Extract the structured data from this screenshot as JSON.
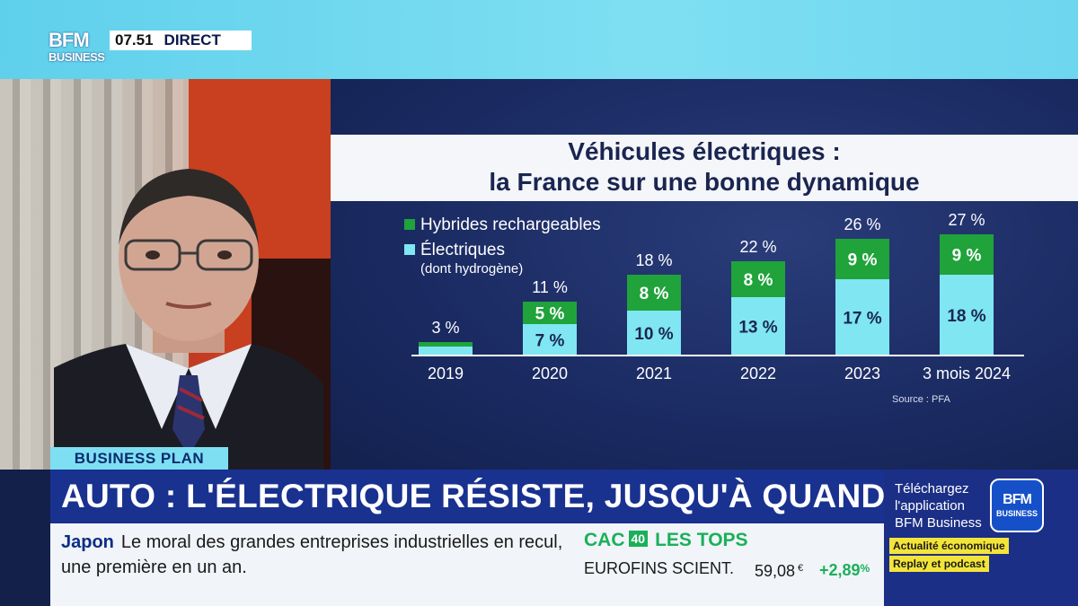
{
  "header": {
    "logo_line1": "BFM",
    "logo_line2": "BUSINESS",
    "clock": "07.51",
    "live_label": "DIRECT"
  },
  "chart_title": {
    "line1": "Véhicules électriques :",
    "line2": "la France sur une bonne dynamique"
  },
  "chart_data": {
    "type": "bar",
    "stacked": true,
    "categories": [
      "2019",
      "2020",
      "2021",
      "2022",
      "2023",
      "3 mois 2024"
    ],
    "series": [
      {
        "name": "Électriques",
        "sub": "(dont hydrogène)",
        "color": "#7fe6f2",
        "values": [
          2,
          7,
          10,
          13,
          17,
          18
        ],
        "labels": [
          "",
          "7 %",
          "10 %",
          "13 %",
          "17 %",
          "18 %"
        ]
      },
      {
        "name": "Hybrides rechargeables",
        "color": "#1fa33a",
        "values": [
          1,
          5,
          8,
          8,
          9,
          9
        ],
        "labels": [
          "",
          "5 %",
          "8 %",
          "8 %",
          "9 %",
          "9 %"
        ]
      }
    ],
    "totals": [
      "3 %",
      "11 %",
      "18 %",
      "22 %",
      "26 %",
      "27 %"
    ],
    "source": "Source : PFA",
    "ylim": [
      0,
      28
    ],
    "legend": "top-left"
  },
  "lower_third": {
    "tag": "BUSINESS PLAN",
    "headline": "AUTO : L'ÉLECTRIQUE RÉSISTE, JUSQU'À QUAND ?"
  },
  "ticker": {
    "keyword": "Japon",
    "text_line1": "Le moral des grandes entreprises industrielles en recul,",
    "text_line2": "une première en un an."
  },
  "bourse": {
    "index_a": "CAC",
    "index_b": "40",
    "section": "LES TOPS",
    "stock": "EUROFINS SCIENT.",
    "price": "59,08",
    "currency": "€",
    "change": "+2,89",
    "change_unit": "%"
  },
  "promo": {
    "line1": "Téléchargez",
    "line2": "l'application",
    "line3": "BFM Business",
    "logo_a": "BFM",
    "logo_b": "BUSINESS",
    "badge1": "Actualité économique",
    "badge2": "Replay et podcast"
  }
}
